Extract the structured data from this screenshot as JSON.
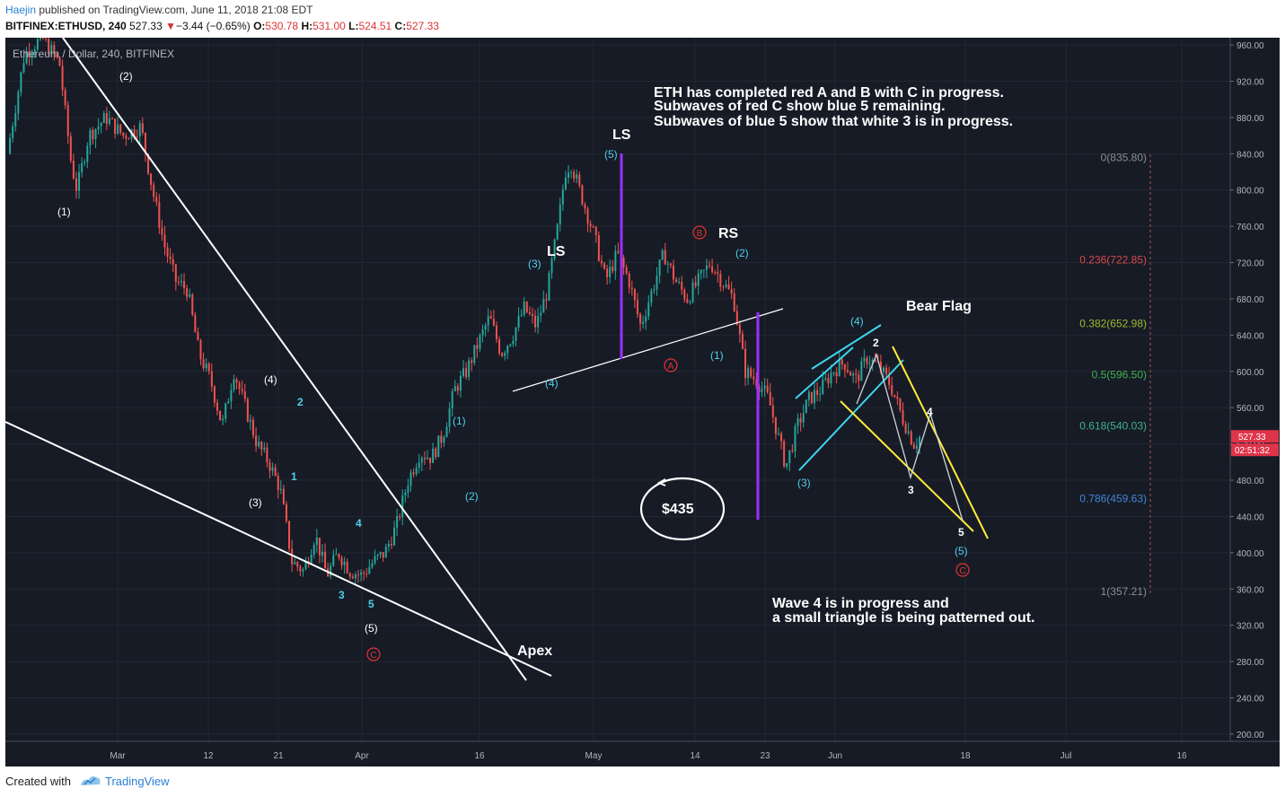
{
  "header": {
    "user": "Haejin",
    "published": "published on TradingView.com, June 11, 2018 21:08 EDT",
    "symbol": "BITFINEX:ETHUSD, 240",
    "last": "527.33",
    "arrow": "▼",
    "change": "−3.44 (−0.65%)",
    "o_label": "O:",
    "o": "530.78",
    "h_label": "H:",
    "h": "531.00",
    "l_label": "L:",
    "l": "524.51",
    "c_label": "C:",
    "c": "527.33"
  },
  "footer": {
    "created_with": "Created with",
    "brand": "TradingView"
  },
  "chart_data": {
    "type": "candlestick",
    "pair_label": "Ethereum / Dollar, 240, BITFINEX",
    "y_ticks": [
      960,
      920,
      880,
      840,
      800,
      760,
      720,
      680,
      640,
      600,
      560,
      520,
      480,
      440,
      400,
      360,
      320,
      280,
      240,
      200
    ],
    "ylim": [
      192,
      968
    ],
    "x_tick_labels": [
      "Mar",
      "12",
      "21",
      "Apr",
      "16",
      "May",
      "14",
      "23",
      "Jun",
      "18",
      "Jul",
      "16"
    ],
    "current_price_tag": "527.33",
    "countdown_tag": "02:51:32",
    "price_path": [
      [
        0,
        840
      ],
      [
        3,
        950
      ],
      [
        6,
        968
      ],
      [
        9,
        940
      ],
      [
        11,
        830
      ],
      [
        12,
        800
      ],
      [
        14,
        860
      ],
      [
        17,
        880
      ],
      [
        20,
        860
      ],
      [
        23,
        870
      ],
      [
        25,
        800
      ],
      [
        27,
        740
      ],
      [
        29,
        700
      ],
      [
        31,
        690
      ],
      [
        33,
        620
      ],
      [
        35,
        590
      ],
      [
        37,
        540
      ],
      [
        39,
        600
      ],
      [
        41,
        560
      ],
      [
        43,
        520
      ],
      [
        45,
        500
      ],
      [
        47,
        470
      ],
      [
        49,
        390
      ],
      [
        51,
        380
      ],
      [
        53,
        420
      ],
      [
        55,
        375
      ],
      [
        57,
        400
      ],
      [
        59,
        380
      ],
      [
        61,
        375
      ],
      [
        63,
        390
      ],
      [
        65,
        400
      ],
      [
        67,
        430
      ],
      [
        69,
        480
      ],
      [
        71,
        510
      ],
      [
        73,
        505
      ],
      [
        75,
        530
      ],
      [
        77,
        580
      ],
      [
        79,
        600
      ],
      [
        81,
        630
      ],
      [
        83,
        660
      ],
      [
        85,
        620
      ],
      [
        87,
        640
      ],
      [
        89,
        670
      ],
      [
        91,
        650
      ],
      [
        93,
        690
      ],
      [
        95,
        770
      ],
      [
        96,
        820
      ],
      [
        97,
        830
      ],
      [
        99,
        790
      ],
      [
        101,
        750
      ],
      [
        103,
        700
      ],
      [
        105,
        730
      ],
      [
        107,
        700
      ],
      [
        109,
        650
      ],
      [
        111,
        690
      ],
      [
        113,
        730
      ],
      [
        115,
        700
      ],
      [
        117,
        680
      ],
      [
        119,
        700
      ],
      [
        121,
        720
      ],
      [
        123,
        700
      ],
      [
        125,
        680
      ],
      [
        126,
        640
      ],
      [
        127,
        600
      ],
      [
        129,
        590
      ],
      [
        131,
        570
      ],
      [
        133,
        520
      ],
      [
        134,
        495
      ],
      [
        136,
        540
      ],
      [
        138,
        570
      ],
      [
        140,
        580
      ],
      [
        142,
        600
      ],
      [
        144,
        610
      ],
      [
        146,
        590
      ],
      [
        148,
        615
      ],
      [
        150,
        605
      ],
      [
        152,
        585
      ],
      [
        154,
        550
      ],
      [
        156,
        520
      ],
      [
        157,
        527.33
      ]
    ],
    "series_color_up": "#26a69a",
    "series_color_down": "#ef5350",
    "fibonacci": {
      "levels": [
        {
          "label": "0(835.80)",
          "price": 835.8,
          "color": "#8a8d97"
        },
        {
          "label": "0.236(722.85)",
          "price": 722.85,
          "color": "#d64b4b"
        },
        {
          "label": "0.382(652.98)",
          "price": 652.98,
          "color": "#9bbb2e"
        },
        {
          "label": "0.5(596.50)",
          "price": 596.5,
          "color": "#3fb24f"
        },
        {
          "label": "0.618(540.03)",
          "price": 540.03,
          "color": "#3fb28a"
        },
        {
          "label": "0.786(459.63)",
          "price": 459.63,
          "color": "#3f86d4"
        },
        {
          "label": "1(357.21)",
          "price": 357.21,
          "color": "#8a8d97"
        }
      ]
    },
    "annotations": {
      "notes_top": [
        "ETH has completed red A and B with C in progress.",
        "Subwaves of red C show blue 5 remaining.",
        "Subwaves of blue 5 show that white 3 is in progress."
      ],
      "notes_bottom": [
        "Wave 4 is in progress and",
        "a small triangle is being patterned out."
      ],
      "ls_left": "LS",
      "ls_top": "LS",
      "rs": "RS",
      "bear_flag": "Bear Flag",
      "apex": "Apex",
      "target": "$435",
      "white_waves": [
        "(1)",
        "(2)",
        "(3)",
        "(4)",
        "(5)"
      ],
      "blue_waves": [
        "(1)",
        "(2)",
        "(3)",
        "(4)",
        "(5)"
      ],
      "blue_waves_right": [
        "(1)",
        "(2)",
        "(3)",
        "(4)",
        "(5)"
      ],
      "small_cyan": [
        "1",
        "2",
        "3",
        "4",
        "5"
      ],
      "small_white": [
        "2",
        "3",
        "4",
        "5"
      ],
      "red_circles": [
        "A",
        "B",
        "C",
        "C"
      ]
    },
    "colors": {
      "background": "#171b26",
      "axis_text": "#b2b5be",
      "white_label": "#ffffff",
      "cyan_label": "#4fd0e8",
      "red_label": "#e03434",
      "purple": "#9b30ff",
      "yellow": "#ffeb3b",
      "price_tag": "#e0344a"
    }
  }
}
